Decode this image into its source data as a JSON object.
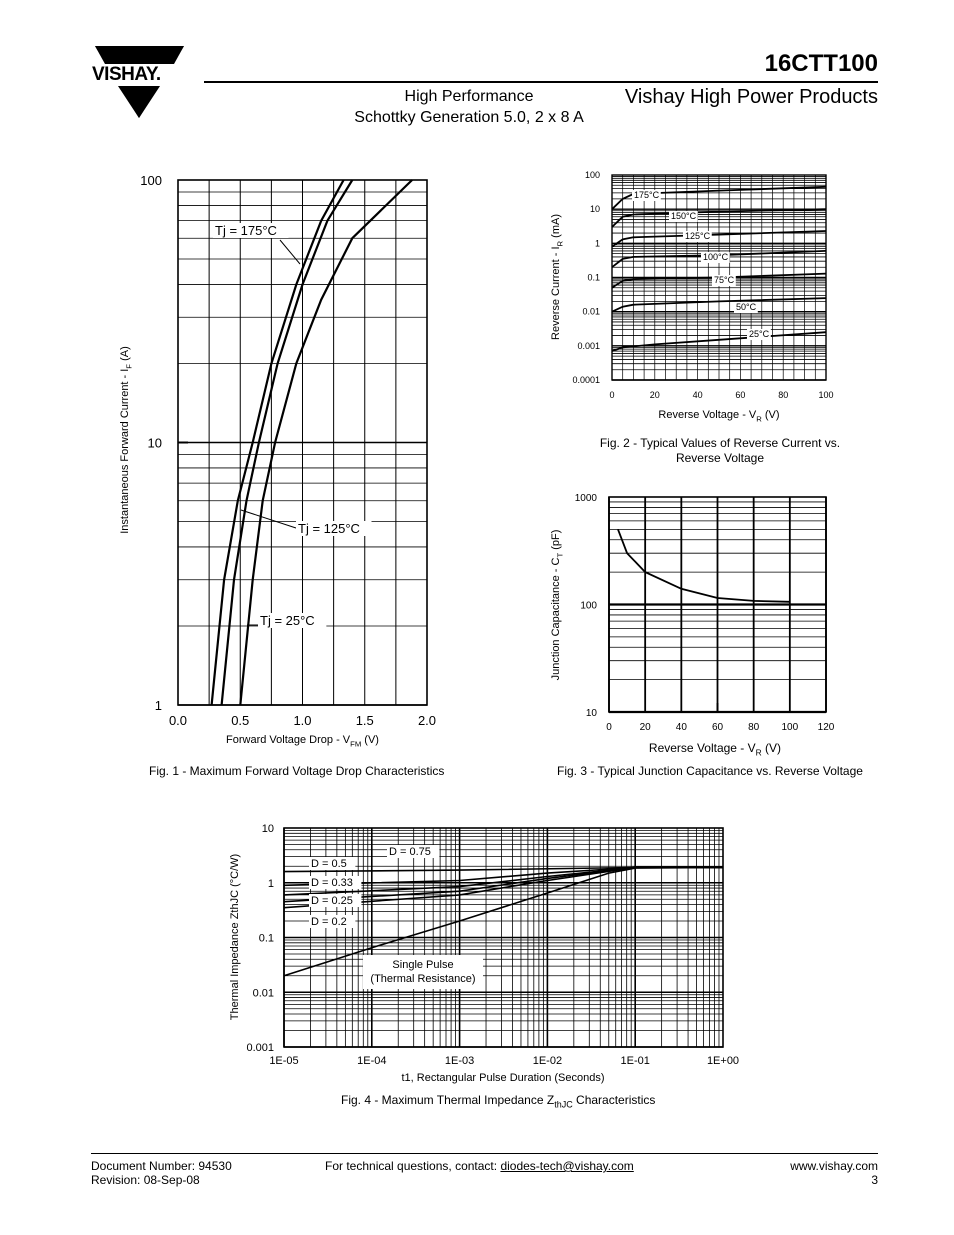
{
  "header": {
    "logo_text": "VISHAY.",
    "part_number": "16CTT100",
    "subtitle_line1": "High Performance",
    "subtitle_line2": "Schottky Generation 5.0, 2 x 8 A",
    "brand_line": "Vishay High Power Products"
  },
  "figures": {
    "fig1": {
      "caption": "Fig. 1 - Maximum Forward Voltage Drop Characteristics",
      "ylabel_main": "Instantaneous Forward Current - I",
      "ylabel_sub": "F",
      "ylabel_unit": " (A)",
      "xlabel_main": "Forward Voltage Drop - V",
      "xlabel_sub": "FM",
      "xlabel_unit": " (V)",
      "annotations": [
        "Tj = 175°C",
        "Tj = 125°C",
        "Tj = 25°C"
      ]
    },
    "fig2": {
      "caption_line1": "Fig. 2 - Typical Values of Reverse Current vs.",
      "caption_line2": "Reverse Voltage",
      "ylabel_main": "Reverse Current - I",
      "ylabel_sub": "R",
      "ylabel_unit": " (mA)",
      "xlabel_main": "Reverse Voltage - V",
      "xlabel_sub": "R",
      "xlabel_unit": " (V)"
    },
    "fig3": {
      "caption": "Fig. 3 - Typical Junction Capacitance vs. Reverse Voltage",
      "ylabel_main": "Junction Capacitance - C",
      "ylabel_sub": "T",
      "ylabel_unit": " (pF)",
      "xlabel_main": "Reverse Voltage - V",
      "xlabel_sub": "R",
      "xlabel_unit": " (V)"
    },
    "fig4": {
      "caption_main": "Fig. 4 - Maximum Thermal Impedance Z",
      "caption_sub": "thJC",
      "caption_end": " Characteristics",
      "ylabel": "Thermal Impedance ZthJC (°C/W)",
      "xlabel": "t1, Rectangular Pulse Duration (Seconds)",
      "single_pulse_line1": "Single Pulse",
      "single_pulse_line2": "(Thermal Resistance)"
    }
  },
  "chart_data": [
    {
      "id": "fig1",
      "type": "line",
      "xlim": [
        0,
        2
      ],
      "ylim": [
        1,
        100
      ],
      "ylog": true,
      "xticks": [
        "0.0",
        "0.5",
        "1.0",
        "1.5",
        "2.0"
      ],
      "yticks": [
        "1",
        "10",
        "100"
      ],
      "series": [
        {
          "name": "Tj = 175°C",
          "points": [
            [
              0.27,
              1
            ],
            [
              0.37,
              3
            ],
            [
              0.48,
              6
            ],
            [
              0.6,
              10
            ],
            [
              0.75,
              20
            ],
            [
              0.95,
              40
            ],
            [
              1.15,
              70
            ],
            [
              1.33,
              100
            ]
          ]
        },
        {
          "name": "Tj = 125°C",
          "points": [
            [
              0.35,
              1
            ],
            [
              0.45,
              3
            ],
            [
              0.55,
              6
            ],
            [
              0.65,
              10
            ],
            [
              0.8,
              20
            ],
            [
              1.0,
              40
            ],
            [
              1.2,
              70
            ],
            [
              1.4,
              100
            ]
          ]
        },
        {
          "name": "Tj = 25°C",
          "points": [
            [
              0.5,
              1
            ],
            [
              0.6,
              3
            ],
            [
              0.68,
              6
            ],
            [
              0.78,
              10
            ],
            [
              0.95,
              20
            ],
            [
              1.15,
              35
            ],
            [
              1.4,
              60
            ],
            [
              1.88,
              100
            ]
          ]
        }
      ]
    },
    {
      "id": "fig2",
      "type": "line",
      "xlim": [
        0,
        100
      ],
      "ylim": [
        0.0001,
        100
      ],
      "ylog": true,
      "xticks": [
        "0",
        "20",
        "40",
        "60",
        "80",
        "100"
      ],
      "yticks": [
        "0.0001",
        "0.001",
        "0.01",
        "0.1",
        "1",
        "10",
        "100"
      ],
      "series": [
        {
          "name": "175°C",
          "points": [
            [
              0,
              10
            ],
            [
              5,
              20
            ],
            [
              10,
              28
            ],
            [
              50,
              35
            ],
            [
              100,
              45
            ]
          ]
        },
        {
          "name": "150°C",
          "points": [
            [
              0,
              3
            ],
            [
              5,
              6
            ],
            [
              10,
              7
            ],
            [
              50,
              8.5
            ],
            [
              100,
              10
            ]
          ]
        },
        {
          "name": "125°C",
          "points": [
            [
              0,
              0.8
            ],
            [
              5,
              1.3
            ],
            [
              10,
              1.5
            ],
            [
              50,
              1.8
            ],
            [
              100,
              2.3
            ]
          ]
        },
        {
          "name": "100°C",
          "points": [
            [
              0,
              0.2
            ],
            [
              5,
              0.35
            ],
            [
              10,
              0.4
            ],
            [
              50,
              0.45
            ],
            [
              100,
              0.6
            ]
          ]
        },
        {
          "name": "75°C",
          "points": [
            [
              0,
              0.05
            ],
            [
              5,
              0.08
            ],
            [
              10,
              0.09
            ],
            [
              50,
              0.1
            ],
            [
              100,
              0.13
            ]
          ]
        },
        {
          "name": "50°C",
          "points": [
            [
              0,
              0.01
            ],
            [
              5,
              0.014
            ],
            [
              10,
              0.016
            ],
            [
              50,
              0.02
            ],
            [
              100,
              0.025
            ]
          ]
        },
        {
          "name": "25°C",
          "points": [
            [
              0,
              0.0007
            ],
            [
              5,
              0.0009
            ],
            [
              20,
              0.0011
            ],
            [
              50,
              0.0015
            ],
            [
              100,
              0.0025
            ]
          ]
        }
      ]
    },
    {
      "id": "fig3",
      "type": "line",
      "xlim": [
        0,
        120
      ],
      "ylim": [
        10,
        1000
      ],
      "ylog": true,
      "xticks": [
        "0",
        "20",
        "40",
        "60",
        "80",
        "100",
        "120"
      ],
      "yticks": [
        "10",
        "100",
        "1000"
      ],
      "series": [
        {
          "points": [
            [
              5,
              500
            ],
            [
              10,
              300
            ],
            [
              20,
              200
            ],
            [
              40,
              140
            ],
            [
              60,
              115
            ],
            [
              80,
              108
            ],
            [
              100,
              106
            ]
          ]
        }
      ]
    },
    {
      "id": "fig4",
      "type": "line",
      "xlim": [
        1e-05,
        1
      ],
      "ylim": [
        0.001,
        10
      ],
      "xlog": true,
      "ylog": true,
      "xticks": [
        "1E-05",
        "1E-04",
        "1E-03",
        "1E-02",
        "1E-01",
        "1E+00"
      ],
      "yticks": [
        "0.001",
        "0.01",
        "0.1",
        "1",
        "10"
      ],
      "series": [
        {
          "name": "D = 0.75",
          "points": [
            [
              1e-05,
              1.6
            ],
            [
              0.001,
              1.7
            ],
            [
              0.1,
              1.9
            ],
            [
              1,
              1.9
            ]
          ]
        },
        {
          "name": "D = 0.5",
          "points": [
            [
              1e-05,
              0.9
            ],
            [
              0.001,
              1.1
            ],
            [
              0.01,
              1.5
            ],
            [
              0.1,
              1.9
            ],
            [
              1,
              1.9
            ]
          ]
        },
        {
          "name": "D = 0.33",
          "points": [
            [
              1e-05,
              0.6
            ],
            [
              0.001,
              0.85
            ],
            [
              0.01,
              1.3
            ],
            [
              0.1,
              1.9
            ],
            [
              1,
              1.9
            ]
          ]
        },
        {
          "name": "D = 0.25",
          "points": [
            [
              1e-05,
              0.45
            ],
            [
              0.001,
              0.7
            ],
            [
              0.01,
              1.2
            ],
            [
              0.1,
              1.9
            ],
            [
              1,
              1.9
            ]
          ]
        },
        {
          "name": "D = 0.2",
          "points": [
            [
              1e-05,
              0.35
            ],
            [
              0.001,
              0.6
            ],
            [
              0.01,
              1.1
            ],
            [
              0.1,
              1.9
            ],
            [
              1,
              1.9
            ]
          ]
        },
        {
          "name": "Single Pulse (Thermal Resistance)",
          "points": [
            [
              1e-05,
              0.02
            ],
            [
              0.0001,
              0.065
            ],
            [
              0.001,
              0.2
            ],
            [
              0.01,
              0.65
            ],
            [
              0.05,
              1.5
            ],
            [
              0.1,
              1.85
            ],
            [
              1,
              1.9
            ]
          ]
        }
      ]
    }
  ],
  "footer": {
    "doc_number": "Document Number: 94530",
    "revision": "Revision: 08-Sep-08",
    "contact_prefix": "For technical questions, contact: ",
    "contact_email": "diodes-tech@vishay.com",
    "website": "www.vishay.com",
    "page": "3"
  }
}
